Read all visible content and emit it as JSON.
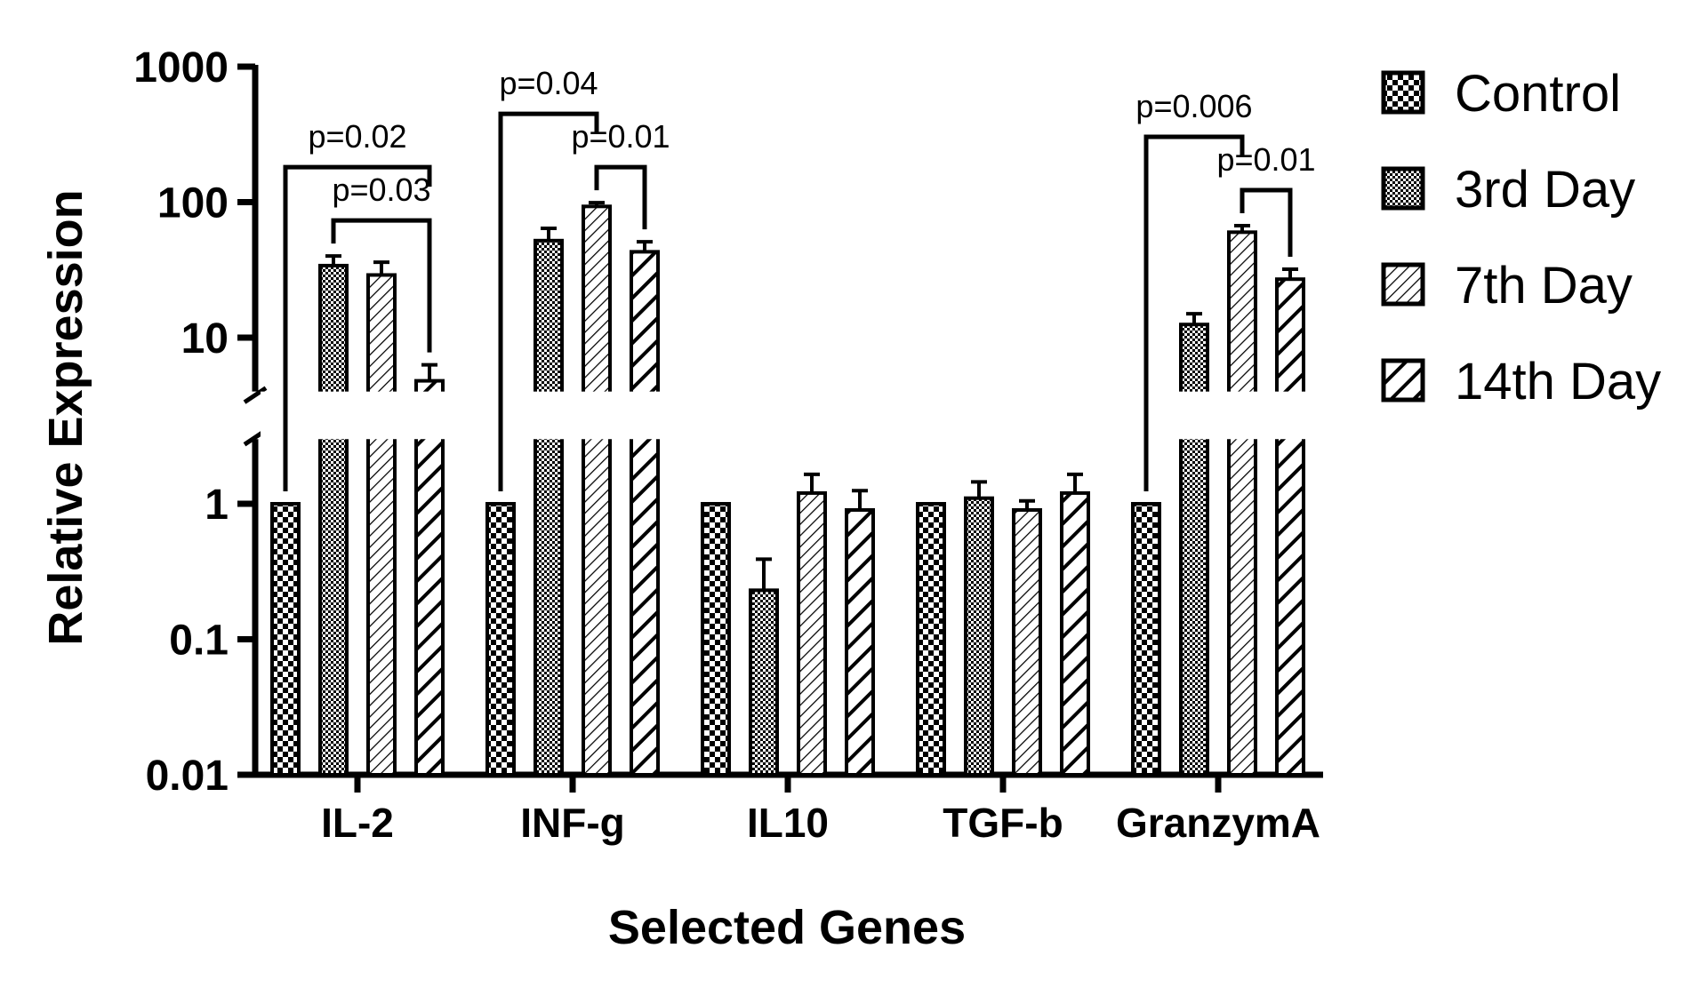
{
  "chart_data": {
    "type": "bar",
    "title": "",
    "xlabel": "Selected Genes",
    "ylabel": "Relative Expression",
    "yscale": "log",
    "y_axis_break": [
      3,
      4
    ],
    "ylim": [
      0.01,
      1000
    ],
    "yticks": [
      "1000",
      "100",
      "10",
      "1",
      "0.1",
      "0.01"
    ],
    "ytick_values": [
      1000,
      100,
      10,
      1,
      0.1,
      0.01
    ],
    "categories": [
      "IL-2",
      "INF-g",
      "IL10",
      "TGF-b",
      "GranzymA"
    ],
    "series": [
      {
        "name": "Control",
        "pattern": "checker-large",
        "values": [
          1,
          1,
          1,
          1,
          1
        ],
        "errors": [
          0,
          0,
          0,
          0,
          0
        ]
      },
      {
        "name": "3rd Day",
        "pattern": "checker-small",
        "values": [
          34,
          52,
          0.23,
          1.1,
          12.5
        ],
        "errors": [
          6,
          12,
          0.16,
          0.35,
          2.5
        ]
      },
      {
        "name": "7th Day",
        "pattern": "hatch-thin",
        "values": [
          29,
          93,
          1.2,
          0.9,
          60
        ],
        "errors": [
          7,
          6,
          0.45,
          0.15,
          7
        ]
      },
      {
        "name": "14th Day",
        "pattern": "hatch-thick",
        "values": [
          4.8,
          43,
          0.9,
          1.2,
          27
        ],
        "errors": [
          1.5,
          8,
          0.35,
          0.45,
          5
        ]
      }
    ],
    "annotations": [
      {
        "category": "IL-2",
        "from": "Control",
        "to": "14th Day",
        "text": "p=0.02",
        "tier": "upper"
      },
      {
        "category": "IL-2",
        "from": "3rd Day",
        "to": "14th Day",
        "text": "p=0.03",
        "tier": "lower"
      },
      {
        "category": "INF-g",
        "from": "Control",
        "to": "7th Day",
        "text": "p=0.04",
        "tier": "upper"
      },
      {
        "category": "INF-g",
        "from": "7th Day",
        "to": "14th Day",
        "text": "p=0.01",
        "tier": "lower"
      },
      {
        "category": "GranzymA",
        "from": "Control",
        "to": "7th Day",
        "text": "p=0.006",
        "tier": "upper"
      },
      {
        "category": "GranzymA",
        "from": "7th Day",
        "to": "14th Day",
        "text": "p=0.01",
        "tier": "lower"
      }
    ],
    "legend": {
      "position": "right"
    },
    "grid": false
  }
}
